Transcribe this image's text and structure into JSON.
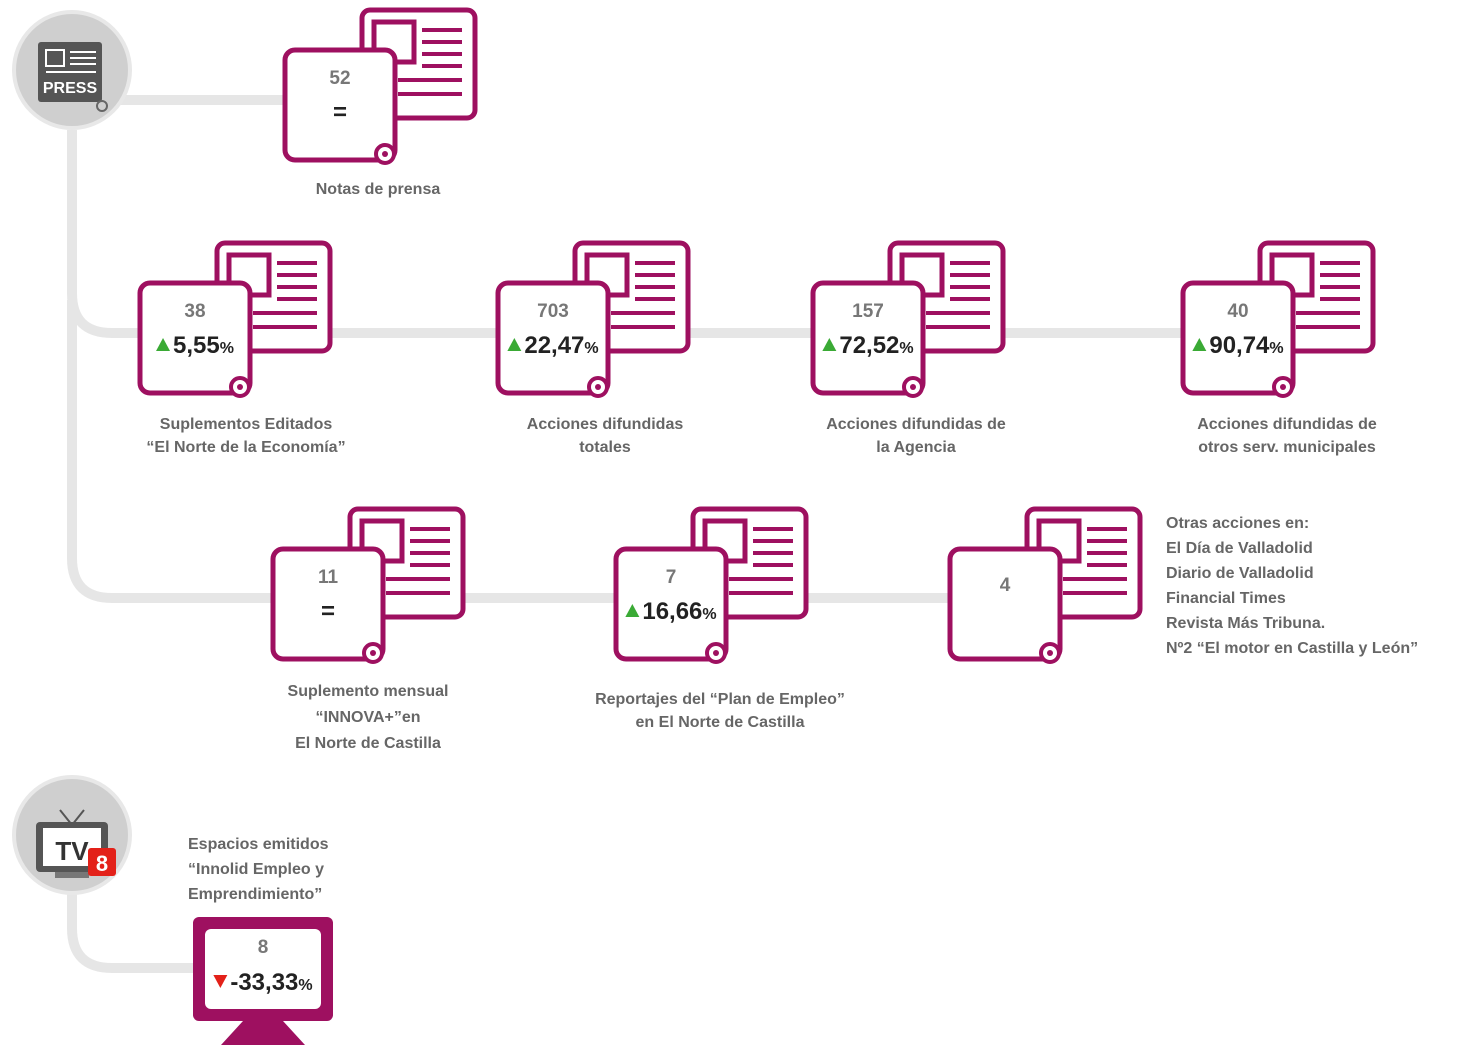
{
  "press": {
    "icon_label": "PRESS"
  },
  "cards": [
    {
      "count": 52,
      "change": {
        "symbol": "="
      },
      "label": [
        "Notas de prensa"
      ]
    },
    {
      "count": 38,
      "change": {
        "direction": "up",
        "value": "5,55",
        "unit": "%"
      },
      "label": [
        "Suplementos Editados",
        "“El Norte de la Economía”"
      ]
    },
    {
      "count": 703,
      "change": {
        "direction": "up",
        "value": "22,47",
        "unit": "%"
      },
      "label": [
        "Acciones difundidas",
        "totales"
      ]
    },
    {
      "count": 157,
      "change": {
        "direction": "up",
        "value": "72,52",
        "unit": "%"
      },
      "label": [
        "Acciones difundidas de",
        "la Agencia"
      ]
    },
    {
      "count": 40,
      "change": {
        "direction": "up",
        "value": "90,74",
        "unit": "%"
      },
      "label": [
        "Acciones difundidas de",
        "otros serv. municipales"
      ]
    },
    {
      "count": 11,
      "change": {
        "symbol": "="
      },
      "label": [
        "Suplemento mensual",
        "“INNOVA+”en",
        "El Norte de Castilla"
      ]
    },
    {
      "count": 7,
      "change": {
        "direction": "up",
        "value": "16,66",
        "unit": "%"
      },
      "label": [
        "Reportajes del “Plan de Empleo”",
        "en El Norte de Castilla"
      ]
    },
    {
      "count": 4,
      "label": [
        "Otras acciones en:",
        "El Día de Valladolid",
        "Diario de Valladolid",
        "Financial Times",
        "Revista Más Tribuna.",
        "Nº2 “El motor en Castilla y León”"
      ]
    }
  ],
  "tv": {
    "icon_label": "TV",
    "channel": "8",
    "label": [
      "Espacios emitidos",
      "“Innolid Empleo y",
      "Emprendimiento”"
    ],
    "count": 8,
    "change": {
      "direction": "down",
      "value": "-33,33",
      "unit": "%"
    }
  }
}
